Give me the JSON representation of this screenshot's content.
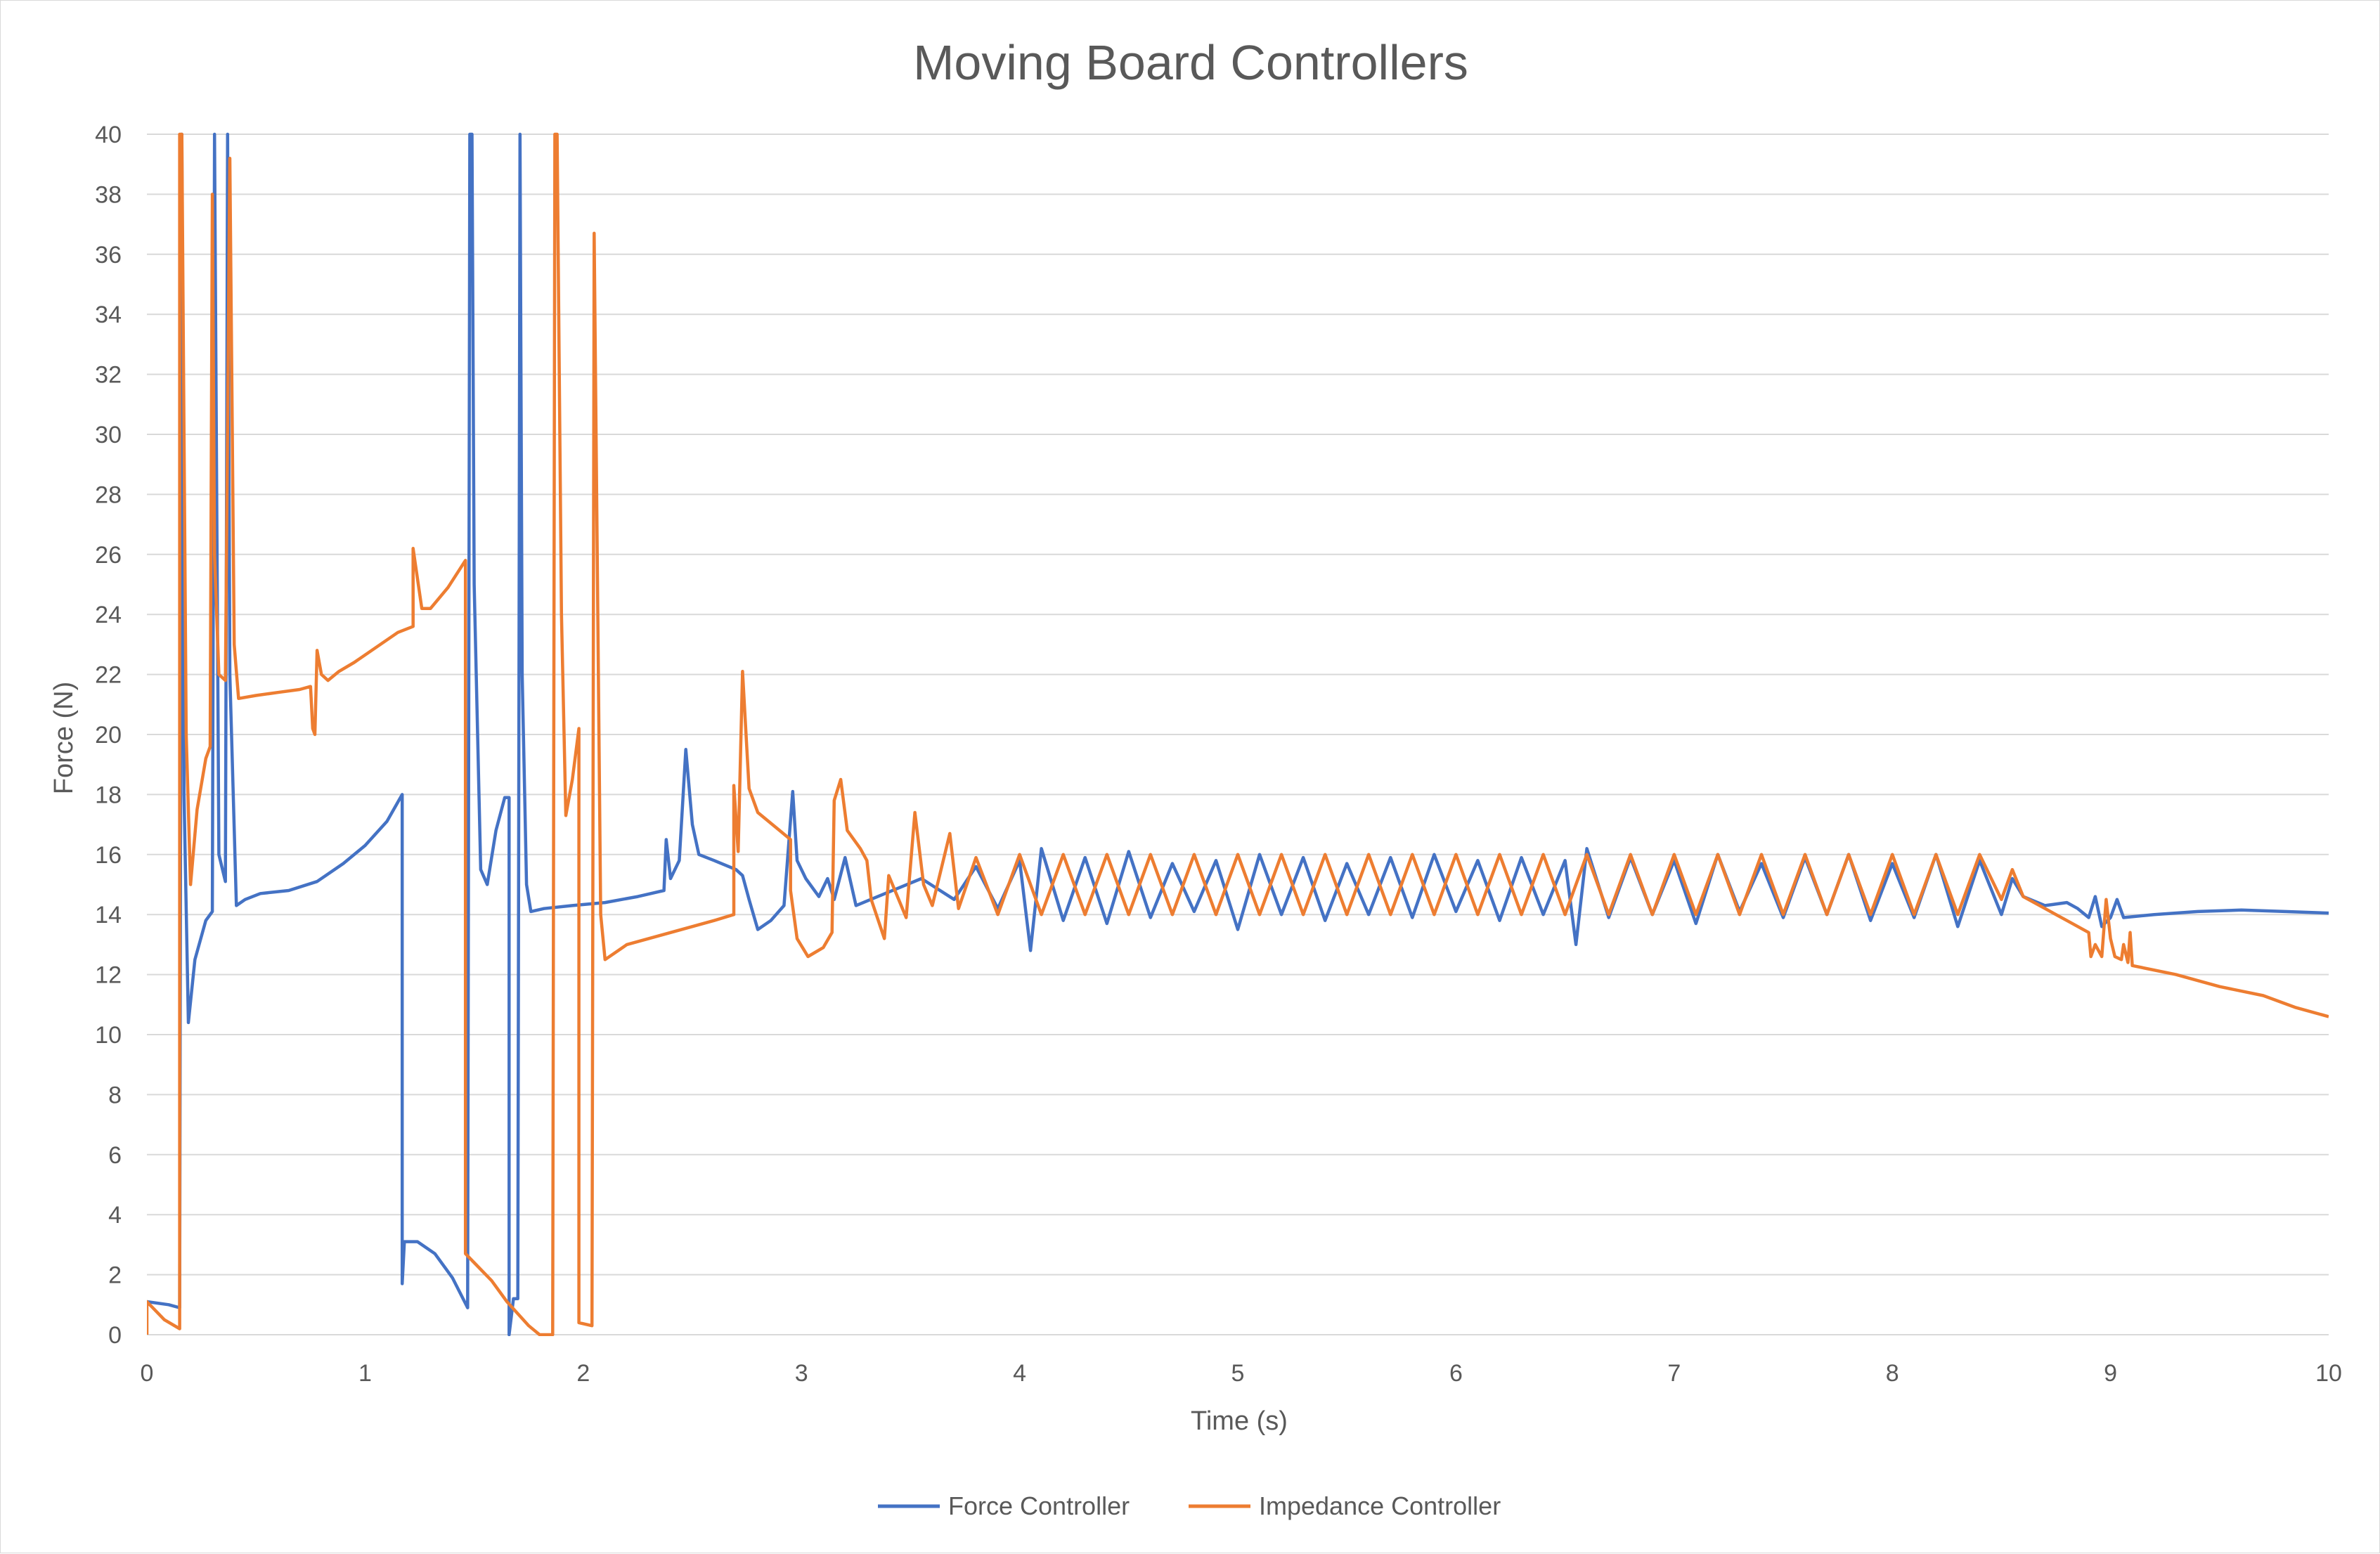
{
  "chart_data": {
    "type": "line",
    "title": "Moving Board Controllers",
    "xlabel": "Time (s)",
    "ylabel": "Force (N)",
    "xlim": [
      0,
      10
    ],
    "ylim": [
      0,
      40
    ],
    "x_ticks": [
      0,
      1,
      2,
      3,
      4,
      5,
      6,
      7,
      8,
      9,
      10
    ],
    "y_ticks": [
      0,
      2,
      4,
      6,
      8,
      10,
      12,
      14,
      16,
      18,
      20,
      22,
      24,
      26,
      28,
      30,
      32,
      34,
      36,
      38,
      40
    ],
    "grid": "horizontal",
    "legend_position": "bottom",
    "series": [
      {
        "name": "Force Controller",
        "color": "#4472C4",
        "points": [
          [
            0.0,
            1.1
          ],
          [
            0.1,
            1.0
          ],
          [
            0.15,
            0.9
          ],
          [
            0.16,
            40
          ],
          [
            0.17,
            18
          ],
          [
            0.19,
            10.4
          ],
          [
            0.22,
            12.5
          ],
          [
            0.27,
            13.8
          ],
          [
            0.3,
            14.1
          ],
          [
            0.31,
            40
          ],
          [
            0.33,
            16
          ],
          [
            0.36,
            15.1
          ],
          [
            0.37,
            40
          ],
          [
            0.38,
            22
          ],
          [
            0.41,
            14.3
          ],
          [
            0.45,
            14.5
          ],
          [
            0.52,
            14.7
          ],
          [
            0.65,
            14.8
          ],
          [
            0.78,
            15.1
          ],
          [
            0.9,
            15.7
          ],
          [
            1.0,
            16.3
          ],
          [
            1.1,
            17.1
          ],
          [
            1.17,
            18.0
          ],
          [
            1.17,
            1.7
          ],
          [
            1.18,
            3.1
          ],
          [
            1.24,
            3.1
          ],
          [
            1.32,
            2.7
          ],
          [
            1.4,
            1.9
          ],
          [
            1.47,
            0.9
          ],
          [
            1.48,
            40
          ],
          [
            1.49,
            40
          ],
          [
            1.5,
            25
          ],
          [
            1.53,
            15.5
          ],
          [
            1.56,
            15.0
          ],
          [
            1.6,
            16.8
          ],
          [
            1.64,
            17.9
          ],
          [
            1.66,
            17.9
          ],
          [
            1.66,
            0
          ],
          [
            1.68,
            1.2
          ],
          [
            1.7,
            1.2
          ],
          [
            1.71,
            40
          ],
          [
            1.72,
            22
          ],
          [
            1.74,
            15
          ],
          [
            1.76,
            14.1
          ],
          [
            1.82,
            14.2
          ],
          [
            1.95,
            14.3
          ],
          [
            2.1,
            14.4
          ],
          [
            2.25,
            14.6
          ],
          [
            2.37,
            14.8
          ],
          [
            2.38,
            16.5
          ],
          [
            2.4,
            15.2
          ],
          [
            2.44,
            15.8
          ],
          [
            2.47,
            19.5
          ],
          [
            2.5,
            17
          ],
          [
            2.53,
            16
          ],
          [
            2.6,
            15.8
          ],
          [
            2.7,
            15.5
          ],
          [
            2.73,
            15.3
          ],
          [
            2.76,
            14.5
          ],
          [
            2.8,
            13.5
          ],
          [
            2.86,
            13.8
          ],
          [
            2.92,
            14.3
          ],
          [
            2.96,
            18.1
          ],
          [
            2.98,
            15.8
          ],
          [
            3.02,
            15.2
          ],
          [
            3.08,
            14.6
          ],
          [
            3.12,
            15.2
          ],
          [
            3.15,
            14.5
          ],
          [
            3.2,
            15.9
          ],
          [
            3.25,
            14.3
          ],
          [
            3.35,
            14.6
          ],
          [
            3.45,
            14.9
          ],
          [
            3.55,
            15.2
          ],
          [
            3.7,
            14.5
          ],
          [
            3.8,
            15.6
          ],
          [
            3.9,
            14.2
          ],
          [
            4.0,
            15.8
          ],
          [
            4.05,
            12.8
          ],
          [
            4.1,
            16.2
          ],
          [
            4.2,
            13.8
          ],
          [
            4.3,
            15.9
          ],
          [
            4.4,
            13.7
          ],
          [
            4.5,
            16.1
          ],
          [
            4.6,
            13.9
          ],
          [
            4.7,
            15.7
          ],
          [
            4.8,
            14.1
          ],
          [
            4.9,
            15.8
          ],
          [
            5.0,
            13.5
          ],
          [
            5.1,
            16.0
          ],
          [
            5.2,
            14.0
          ],
          [
            5.3,
            15.9
          ],
          [
            5.4,
            13.8
          ],
          [
            5.5,
            15.7
          ],
          [
            5.6,
            14.0
          ],
          [
            5.7,
            15.9
          ],
          [
            5.8,
            13.9
          ],
          [
            5.9,
            16.0
          ],
          [
            6.0,
            14.1
          ],
          [
            6.1,
            15.8
          ],
          [
            6.2,
            13.8
          ],
          [
            6.3,
            15.9
          ],
          [
            6.4,
            14.0
          ],
          [
            6.5,
            15.8
          ],
          [
            6.55,
            13.0
          ],
          [
            6.6,
            16.2
          ],
          [
            6.7,
            13.9
          ],
          [
            6.8,
            15.9
          ],
          [
            6.9,
            14.0
          ],
          [
            7.0,
            15.8
          ],
          [
            7.1,
            13.7
          ],
          [
            7.2,
            16.0
          ],
          [
            7.3,
            14.1
          ],
          [
            7.4,
            15.7
          ],
          [
            7.5,
            13.9
          ],
          [
            7.6,
            15.9
          ],
          [
            7.7,
            14.0
          ],
          [
            7.8,
            16.0
          ],
          [
            7.9,
            13.8
          ],
          [
            8.0,
            15.7
          ],
          [
            8.1,
            13.9
          ],
          [
            8.2,
            16.0
          ],
          [
            8.3,
            13.6
          ],
          [
            8.4,
            15.8
          ],
          [
            8.5,
            14.0
          ],
          [
            8.55,
            15.2
          ],
          [
            8.6,
            14.6
          ],
          [
            8.7,
            14.3
          ],
          [
            8.8,
            14.4
          ],
          [
            8.85,
            14.2
          ],
          [
            8.9,
            13.9
          ],
          [
            8.93,
            14.6
          ],
          [
            8.96,
            13.6
          ],
          [
            9.0,
            13.9
          ],
          [
            9.03,
            14.5
          ],
          [
            9.06,
            13.9
          ],
          [
            9.2,
            14.0
          ],
          [
            9.4,
            14.1
          ],
          [
            9.6,
            14.15
          ],
          [
            9.8,
            14.1
          ],
          [
            10.0,
            14.05
          ]
        ]
      },
      {
        "name": "Impedance Controller",
        "color": "#ED7D31",
        "points": [
          [
            0.0,
            0
          ],
          [
            0.0,
            1.1
          ],
          [
            0.08,
            0.5
          ],
          [
            0.15,
            0.2
          ],
          [
            0.15,
            40
          ],
          [
            0.16,
            40
          ],
          [
            0.18,
            20
          ],
          [
            0.2,
            15.0
          ],
          [
            0.23,
            17.5
          ],
          [
            0.27,
            19.2
          ],
          [
            0.29,
            19.6
          ],
          [
            0.3,
            38
          ],
          [
            0.31,
            26
          ],
          [
            0.33,
            22.0
          ],
          [
            0.36,
            21.8
          ],
          [
            0.38,
            39.2
          ],
          [
            0.4,
            23
          ],
          [
            0.42,
            21.2
          ],
          [
            0.5,
            21.3
          ],
          [
            0.6,
            21.4
          ],
          [
            0.7,
            21.5
          ],
          [
            0.75,
            21.6
          ],
          [
            0.76,
            20.2
          ],
          [
            0.77,
            20.0
          ],
          [
            0.78,
            22.8
          ],
          [
            0.8,
            22.0
          ],
          [
            0.83,
            21.8
          ],
          [
            0.88,
            22.1
          ],
          [
            0.95,
            22.4
          ],
          [
            1.05,
            22.9
          ],
          [
            1.15,
            23.4
          ],
          [
            1.22,
            23.6
          ],
          [
            1.22,
            26.2
          ],
          [
            1.26,
            24.2
          ],
          [
            1.3,
            24.2
          ],
          [
            1.38,
            24.9
          ],
          [
            1.46,
            25.8
          ],
          [
            1.46,
            2.7
          ],
          [
            1.5,
            2.4
          ],
          [
            1.58,
            1.8
          ],
          [
            1.65,
            1.1
          ],
          [
            1.75,
            0.3
          ],
          [
            1.8,
            0
          ],
          [
            1.86,
            0
          ],
          [
            1.87,
            40
          ],
          [
            1.88,
            40
          ],
          [
            1.9,
            24
          ],
          [
            1.92,
            17.3
          ],
          [
            1.95,
            18.5
          ],
          [
            1.98,
            20.2
          ],
          [
            1.98,
            0.4
          ],
          [
            2.04,
            0.3
          ],
          [
            2.05,
            36.7
          ],
          [
            2.08,
            14.0
          ],
          [
            2.1,
            12.5
          ],
          [
            2.2,
            13.0
          ],
          [
            2.4,
            13.4
          ],
          [
            2.6,
            13.8
          ],
          [
            2.69,
            14.0
          ],
          [
            2.69,
            18.3
          ],
          [
            2.71,
            16.1
          ],
          [
            2.73,
            22.1
          ],
          [
            2.76,
            18.2
          ],
          [
            2.8,
            17.4
          ],
          [
            2.9,
            16.8
          ],
          [
            2.95,
            16.5
          ],
          [
            2.95,
            14.8
          ],
          [
            2.98,
            13.2
          ],
          [
            3.03,
            12.6
          ],
          [
            3.1,
            12.9
          ],
          [
            3.14,
            13.4
          ],
          [
            3.15,
            17.8
          ],
          [
            3.18,
            18.5
          ],
          [
            3.21,
            16.8
          ],
          [
            3.27,
            16.2
          ],
          [
            3.3,
            15.8
          ],
          [
            3.32,
            14.5
          ],
          [
            3.38,
            13.2
          ],
          [
            3.4,
            15.3
          ],
          [
            3.48,
            13.9
          ],
          [
            3.52,
            17.4
          ],
          [
            3.56,
            15.0
          ],
          [
            3.6,
            14.3
          ],
          [
            3.68,
            16.7
          ],
          [
            3.72,
            14.2
          ],
          [
            3.8,
            15.9
          ],
          [
            3.9,
            14.0
          ],
          [
            4.0,
            16.0
          ],
          [
            4.1,
            14.0
          ],
          [
            4.2,
            16.0
          ],
          [
            4.3,
            14.0
          ],
          [
            4.4,
            16.0
          ],
          [
            4.5,
            14.0
          ],
          [
            4.6,
            16.0
          ],
          [
            4.7,
            14.0
          ],
          [
            4.8,
            16.0
          ],
          [
            4.9,
            14.0
          ],
          [
            5.0,
            16.0
          ],
          [
            5.1,
            14.0
          ],
          [
            5.2,
            16.0
          ],
          [
            5.3,
            14.0
          ],
          [
            5.4,
            16.0
          ],
          [
            5.5,
            14.0
          ],
          [
            5.6,
            16.0
          ],
          [
            5.7,
            14.0
          ],
          [
            5.8,
            16.0
          ],
          [
            5.9,
            14.0
          ],
          [
            6.0,
            16.0
          ],
          [
            6.1,
            14.0
          ],
          [
            6.2,
            16.0
          ],
          [
            6.3,
            14.0
          ],
          [
            6.4,
            16.0
          ],
          [
            6.5,
            14.0
          ],
          [
            6.6,
            16.0
          ],
          [
            6.7,
            14.0
          ],
          [
            6.8,
            16.0
          ],
          [
            6.9,
            14.0
          ],
          [
            7.0,
            16.0
          ],
          [
            7.1,
            14.0
          ],
          [
            7.2,
            16.0
          ],
          [
            7.3,
            14.0
          ],
          [
            7.4,
            16.0
          ],
          [
            7.5,
            14.0
          ],
          [
            7.6,
            16.0
          ],
          [
            7.7,
            14.0
          ],
          [
            7.8,
            16.0
          ],
          [
            7.9,
            14.0
          ],
          [
            8.0,
            16.0
          ],
          [
            8.1,
            14.0
          ],
          [
            8.2,
            16.0
          ],
          [
            8.3,
            14.0
          ],
          [
            8.4,
            16.0
          ],
          [
            8.5,
            14.5
          ],
          [
            8.55,
            15.5
          ],
          [
            8.6,
            14.6
          ],
          [
            8.7,
            14.2
          ],
          [
            8.8,
            13.8
          ],
          [
            8.9,
            13.4
          ],
          [
            8.91,
            12.6
          ],
          [
            8.93,
            13.0
          ],
          [
            8.96,
            12.6
          ],
          [
            8.98,
            14.5
          ],
          [
            9.0,
            13.2
          ],
          [
            9.02,
            12.6
          ],
          [
            9.05,
            12.5
          ],
          [
            9.06,
            13.0
          ],
          [
            9.08,
            12.4
          ],
          [
            9.09,
            13.4
          ],
          [
            9.1,
            12.3
          ],
          [
            9.3,
            12.0
          ],
          [
            9.5,
            11.6
          ],
          [
            9.7,
            11.3
          ],
          [
            9.85,
            10.9
          ],
          [
            10.0,
            10.6
          ]
        ]
      }
    ]
  }
}
